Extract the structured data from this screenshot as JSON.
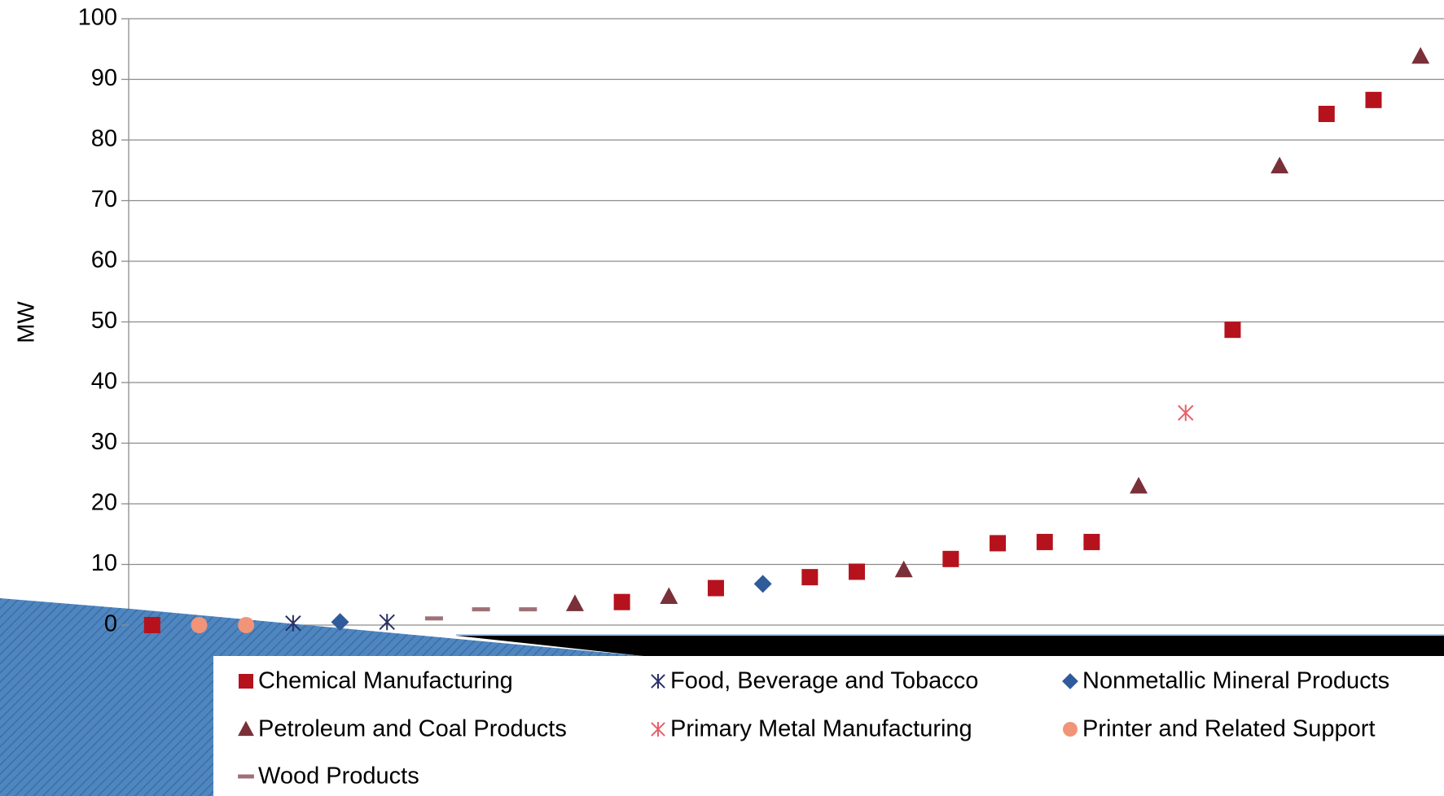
{
  "chart_data": {
    "type": "scatter",
    "y_label": "MW",
    "ylim": [
      0,
      100
    ],
    "yticks": [
      0,
      10,
      20,
      30,
      40,
      50,
      60,
      70,
      80,
      90,
      100
    ],
    "xlim": [
      0.5,
      28.5
    ],
    "grid": true,
    "legend": "bottom",
    "series": [
      {
        "name": "Chemical Manufacturing",
        "color": "#b5121e",
        "marker": "square",
        "x": [
          1,
          11,
          13,
          15,
          16,
          18,
          19,
          20,
          21,
          24,
          26,
          27
        ],
        "values": [
          0,
          3.8,
          6.1,
          7.9,
          8.8,
          10.9,
          13.5,
          13.7,
          13.7,
          48.7,
          84.3,
          86.6
        ]
      },
      {
        "name": "Food, Beverage and Tobacco",
        "color": "#2a3066",
        "marker": "asterisk",
        "x": [
          4,
          6
        ],
        "values": [
          0.3,
          0.5
        ]
      },
      {
        "name": "Nonmetallic Mineral Products",
        "color": "#2f5b9a",
        "marker": "diamond",
        "x": [
          5,
          14
        ],
        "values": [
          0.5,
          6.8
        ]
      },
      {
        "name": "Petroleum and Coal Products",
        "color": "#7a3038",
        "marker": "triangle",
        "x": [
          10,
          12,
          17,
          22,
          25,
          28
        ],
        "values": [
          3.5,
          4.7,
          9.1,
          22.9,
          75.7,
          93.8
        ]
      },
      {
        "name": "Primary Metal Manufacturing",
        "color": "#e8606a",
        "marker": "asterisk",
        "x": [
          23
        ],
        "values": [
          35
        ]
      },
      {
        "name": "Printer and Related Support",
        "color": "#f29478",
        "marker": "circle",
        "x": [
          2,
          3
        ],
        "values": [
          0,
          0
        ]
      },
      {
        "name": "Wood Products",
        "color": "#a07078",
        "marker": "dash",
        "x": [
          7,
          8,
          9
        ],
        "values": [
          1.1,
          2.6,
          2.6
        ]
      }
    ]
  }
}
